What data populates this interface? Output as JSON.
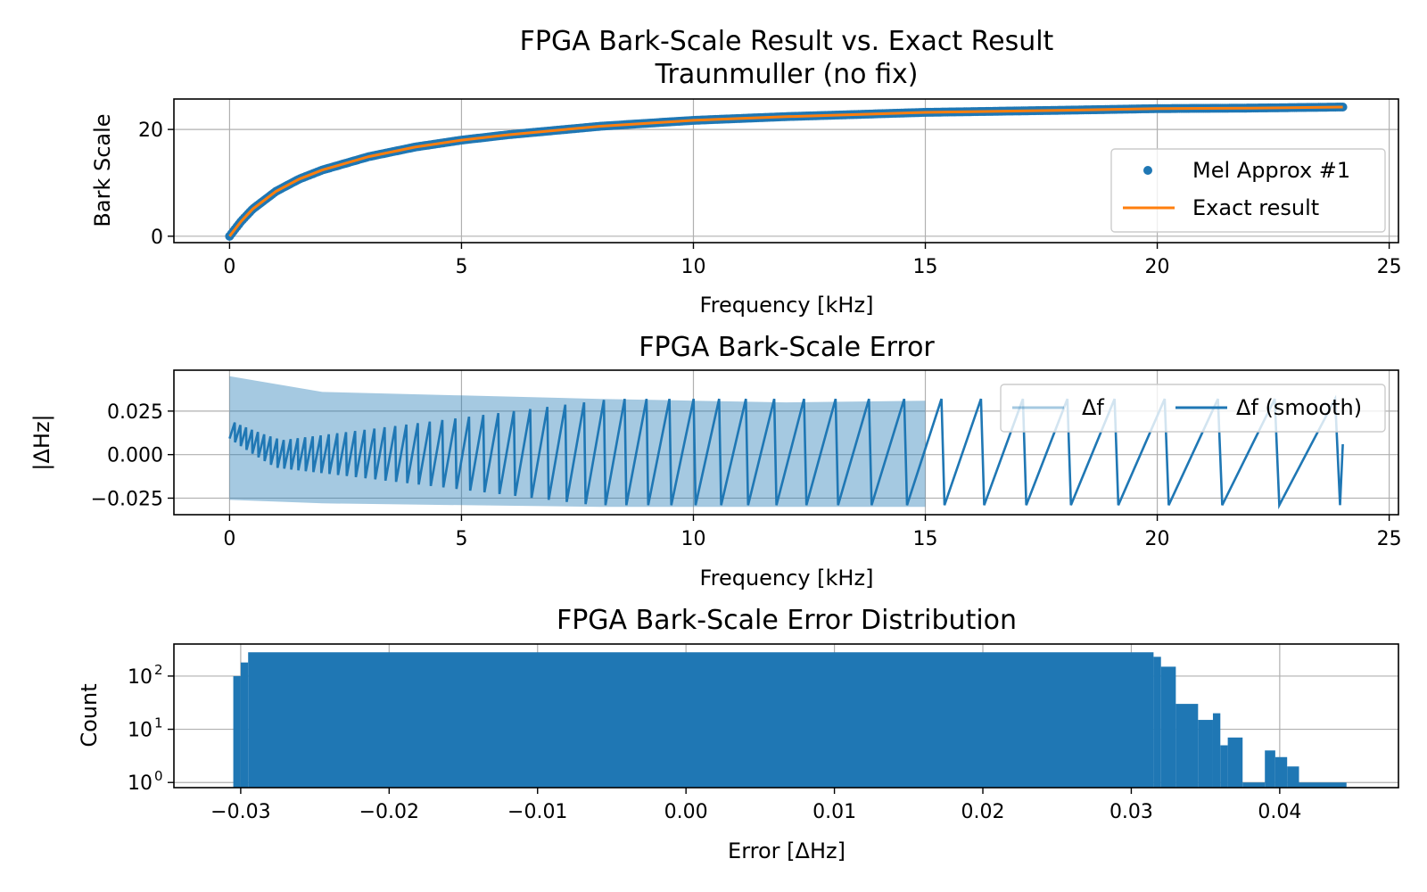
{
  "chart_data": [
    {
      "type": "line",
      "title": "FPGA Bark-Scale Result vs. Exact Result",
      "subtitle": "Traunmuller (no fix)",
      "xlabel": "Frequency [kHz]",
      "ylabel": "Bark Scale",
      "xlim": [
        -1.2,
        25.2
      ],
      "ylim": [
        -1.2,
        25.7
      ],
      "xticks": [
        0,
        5,
        10,
        15,
        20,
        25
      ],
      "xtick_labels": [
        "0",
        "5",
        "10",
        "15",
        "20",
        "25"
      ],
      "yticks": [
        0,
        20
      ],
      "ytick_labels": [
        "0",
        "20"
      ],
      "grid": true,
      "legend_position": "lower-right",
      "series": [
        {
          "name": "Mel Approx #1",
          "kind": "scatter",
          "color": "#1f77b4",
          "x": [
            0,
            0.25,
            0.5,
            1,
            1.5,
            2,
            3,
            4,
            5,
            6,
            8,
            10,
            12,
            15,
            18,
            20,
            22,
            24
          ],
          "y": [
            0,
            2.8,
            5.1,
            8.4,
            10.7,
            12.4,
            14.9,
            16.7,
            18.0,
            19.0,
            20.6,
            21.7,
            22.4,
            23.2,
            23.6,
            23.9,
            24.0,
            24.2
          ]
        },
        {
          "name": "Exact result",
          "kind": "line",
          "color": "#ff7f0e",
          "x": [
            0,
            0.25,
            0.5,
            1,
            1.5,
            2,
            3,
            4,
            5,
            6,
            8,
            10,
            12,
            15,
            18,
            20,
            22,
            24
          ],
          "y": [
            0,
            2.8,
            5.1,
            8.4,
            10.7,
            12.4,
            14.9,
            16.7,
            18.0,
            19.0,
            20.6,
            21.7,
            22.4,
            23.2,
            23.6,
            23.9,
            24.0,
            24.2
          ]
        }
      ]
    },
    {
      "type": "line",
      "title": "FPGA Bark-Scale Error",
      "xlabel": "Frequency [kHz]",
      "ylabel": "|ΔHz|",
      "xlim": [
        -1.2,
        25.2
      ],
      "ylim": [
        -0.0345,
        0.0485
      ],
      "xticks": [
        0,
        5,
        10,
        15,
        20,
        25
      ],
      "xtick_labels": [
        "0",
        "5",
        "10",
        "15",
        "20",
        "25"
      ],
      "yticks": [
        0.025,
        0.0,
        -0.025
      ],
      "ytick_labels": [
        "0.025",
        "0.000",
        "−0.025"
      ],
      "grid": true,
      "legend_position": "upper-right",
      "series": [
        {
          "name": "Δf",
          "color": "#1f77b4",
          "alpha": 0.4,
          "envelope_x": [
            0,
            2,
            5,
            8,
            10,
            12,
            15
          ],
          "upper": [
            0.045,
            0.036,
            0.034,
            0.032,
            0.031,
            0.03,
            0.031
          ],
          "lower": [
            -0.026,
            -0.028,
            -0.029,
            -0.03,
            -0.03,
            -0.03,
            -0.03
          ]
        },
        {
          "name": "Δf (smooth)",
          "color": "#1f77b4",
          "alpha": 1.0,
          "sawtooth_min": -0.029,
          "sawtooth_max": 0.032,
          "start_period_khz": 0.12,
          "end_period_khz": 1.4,
          "x_start": 0,
          "x_end": 24,
          "dense_center_x": [
            0,
            1,
            2.5,
            5,
            7
          ],
          "dense_center_y": [
            0.016,
            0.0,
            0.0,
            0.0,
            0.0
          ]
        }
      ]
    },
    {
      "type": "bar",
      "title": "FPGA Bark-Scale Error Distribution",
      "xlabel": "Error [ΔHz]",
      "ylabel": "Count",
      "yscale": "log",
      "xlim": [
        -0.0345,
        0.048
      ],
      "ylim": [
        0.8,
        400
      ],
      "xticks": [
        -0.03,
        -0.02,
        -0.01,
        0.0,
        0.01,
        0.02,
        0.03,
        0.04
      ],
      "xtick_labels": [
        "−0.03",
        "−0.02",
        "−0.01",
        "0.00",
        "0.01",
        "0.02",
        "0.03",
        "0.04"
      ],
      "yticks": [
        1,
        10,
        100
      ],
      "ytick_labels": [
        "10",
        "10",
        "10"
      ],
      "ytick_exponents": [
        "0",
        "1",
        "2"
      ],
      "grid": true,
      "color": "#1f77b4",
      "bins": [
        {
          "x0": -0.0305,
          "x1": -0.03,
          "count": 100
        },
        {
          "x0": -0.03,
          "x1": -0.0295,
          "count": 180
        },
        {
          "x0": -0.0295,
          "x1": 0.0315,
          "count": 280
        },
        {
          "x0": 0.0315,
          "x1": 0.032,
          "count": 230
        },
        {
          "x0": 0.032,
          "x1": 0.033,
          "count": 150
        },
        {
          "x0": 0.033,
          "x1": 0.0345,
          "count": 30
        },
        {
          "x0": 0.0345,
          "x1": 0.0355,
          "count": 15
        },
        {
          "x0": 0.0355,
          "x1": 0.036,
          "count": 20
        },
        {
          "x0": 0.036,
          "x1": 0.0365,
          "count": 5
        },
        {
          "x0": 0.0365,
          "x1": 0.0375,
          "count": 7
        },
        {
          "x0": 0.0375,
          "x1": 0.039,
          "count": 1
        },
        {
          "x0": 0.039,
          "x1": 0.0397,
          "count": 4
        },
        {
          "x0": 0.0397,
          "x1": 0.0405,
          "count": 3
        },
        {
          "x0": 0.0405,
          "x1": 0.0413,
          "count": 2
        },
        {
          "x0": 0.0413,
          "x1": 0.0445,
          "count": 1
        }
      ]
    }
  ]
}
